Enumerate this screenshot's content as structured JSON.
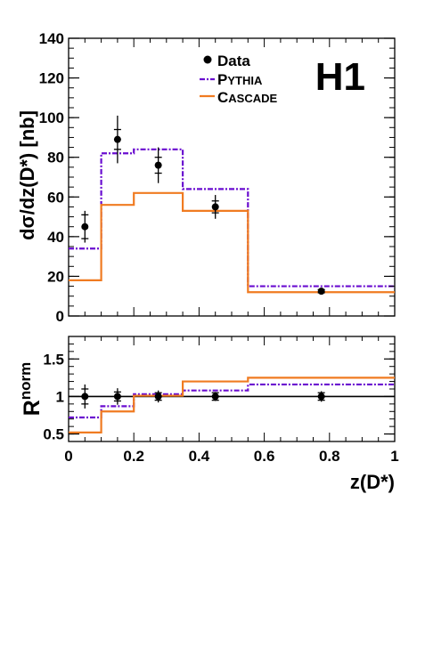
{
  "chart_data": [
    {
      "type": "histogram",
      "panel": "cross-section",
      "ylabel": "dσ/dz(D*) [nb]",
      "xlim": [
        0,
        1
      ],
      "ylim": [
        0,
        140
      ],
      "y_ticks": [
        0,
        20,
        40,
        60,
        80,
        100,
        120,
        140
      ],
      "logo": "H1",
      "legend": {
        "position": "top-right",
        "entries": [
          "Data",
          "PYTHIA",
          "CASCADE"
        ]
      },
      "bin_edges": [
        0,
        0.1,
        0.2,
        0.35,
        0.55,
        1.0
      ],
      "data": {
        "name": "Data",
        "x": [
          0.05,
          0.15,
          0.275,
          0.45,
          0.775
        ],
        "y": [
          45,
          89,
          76,
          55,
          12.5
        ],
        "err_stat": [
          6,
          5,
          4,
          3,
          0.8
        ],
        "err_tot": [
          8,
          12,
          9,
          6,
          1.5
        ]
      },
      "series": [
        {
          "name": "PYTHIA",
          "values": [
            34,
            82,
            84,
            64,
            15
          ],
          "color": "#6a0dd0",
          "style": "dash-dot"
        },
        {
          "name": "CASCADE",
          "values": [
            18,
            56,
            62,
            53,
            12
          ],
          "color": "#f07b21",
          "style": "solid"
        }
      ]
    },
    {
      "type": "histogram",
      "panel": "ratio",
      "xlabel": "z(D*)",
      "ylabel": "R",
      "ylabel_sup": "norm",
      "xlim": [
        0,
        1
      ],
      "ylim": [
        0.4,
        1.8
      ],
      "y_ticks": [
        0.5,
        1,
        1.5
      ],
      "y_tick_labels": [
        "0.5",
        "1",
        "1.5"
      ],
      "x_ticks": [
        0,
        0.2,
        0.4,
        0.6,
        0.8,
        1
      ],
      "x_tick_labels": [
        "0",
        "0.2",
        "0.4",
        "0.6",
        "0.8",
        "1"
      ],
      "reference_line": 1,
      "bin_edges": [
        0,
        0.1,
        0.2,
        0.35,
        0.55,
        1.0
      ],
      "data": {
        "name": "Data",
        "x": [
          0.05,
          0.15,
          0.275,
          0.45,
          0.775
        ],
        "y": [
          1.0,
          1.0,
          1.0,
          1.0,
          1.0
        ],
        "err_stat": [
          0.1,
          0.06,
          0.05,
          0.05,
          0.05
        ],
        "err_tot": [
          0.16,
          0.11,
          0.08,
          0.06,
          0.07
        ]
      },
      "series": [
        {
          "name": "PYTHIA",
          "values": [
            0.72,
            0.87,
            1.03,
            1.08,
            1.16
          ],
          "color": "#6a0dd0",
          "style": "dash-dot"
        },
        {
          "name": "CASCADE",
          "values": [
            0.52,
            0.8,
            1.01,
            1.2,
            1.25
          ],
          "color": "#f07b21",
          "style": "solid"
        }
      ]
    }
  ]
}
